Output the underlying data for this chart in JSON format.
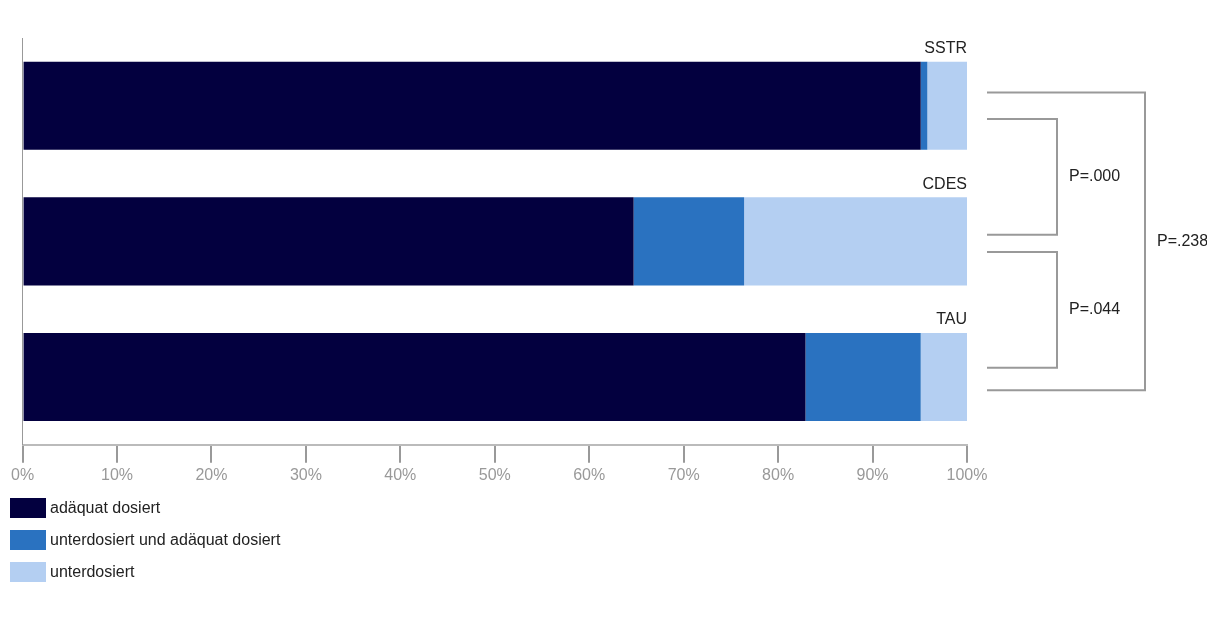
{
  "chart_data": {
    "type": "bar",
    "orientation": "horizontal",
    "stacked": true,
    "categories": [
      "SSTR",
      "CDES",
      "TAU"
    ],
    "series": [
      {
        "name": "adäquat dosiert",
        "color": "#03003f",
        "values": [
          95.1,
          64.7,
          82.9
        ]
      },
      {
        "name": "unterdosiert und adäquat dosiert",
        "color": "#2a72c0",
        "values": [
          0.7,
          11.7,
          12.2
        ]
      },
      {
        "name": "unterdosiert",
        "color": "#b4cff2",
        "values": [
          4.2,
          23.6,
          4.9
        ]
      }
    ],
    "xlim": [
      0,
      100
    ],
    "xticks": [
      {
        "value": 0,
        "label": "0%"
      },
      {
        "value": 10,
        "label": "10%"
      },
      {
        "value": 20,
        "label": "20%"
      },
      {
        "value": 30,
        "label": "30%"
      },
      {
        "value": 40,
        "label": "40%"
      },
      {
        "value": 50,
        "label": "50%"
      },
      {
        "value": 60,
        "label": "60%"
      },
      {
        "value": 70,
        "label": "70%"
      },
      {
        "value": 80,
        "label": "80%"
      },
      {
        "value": 90,
        "label": "90%"
      },
      {
        "value": 100,
        "label": "100%"
      }
    ],
    "annotations": [
      "P=.000",
      "P=.044",
      "P=.238"
    ],
    "grid": false,
    "legend": "bottom"
  }
}
